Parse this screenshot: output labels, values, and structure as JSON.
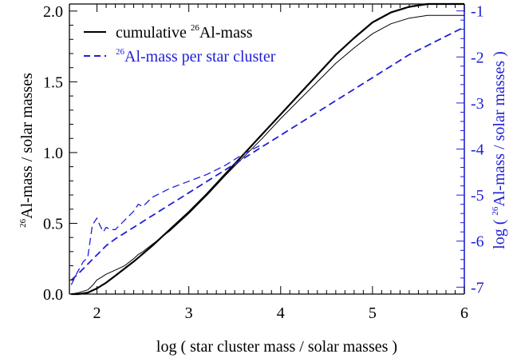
{
  "chart_data": {
    "type": "line",
    "xlabel": "log ( star cluster mass / solar masses )",
    "ylabel_left": {
      "sup": "26",
      "text": "Al-mass / solar masses"
    },
    "ylabel_right": {
      "prefix": "log ( ",
      "sup": "26",
      "text": "Al-mass / solar masses )"
    },
    "xlim": [
      1.7,
      6.0
    ],
    "ylim_left": [
      0.0,
      2.05
    ],
    "ylim_right": [
      -7.15,
      -0.85
    ],
    "x_ticks": [
      "2",
      "3",
      "4",
      "5",
      "6"
    ],
    "x_tick_values": [
      2,
      3,
      4,
      5,
      6
    ],
    "y_left_ticks": [
      "0.0",
      "0.5",
      "1.0",
      "1.5",
      "2.0"
    ],
    "y_left_tick_values": [
      0.0,
      0.5,
      1.0,
      1.5,
      2.0
    ],
    "y_right_ticks": [
      "-1",
      "-2",
      "-3",
      "-4",
      "-5",
      "-6",
      "-7"
    ],
    "y_right_tick_values": [
      -1,
      -2,
      -3,
      -4,
      -5,
      -6,
      -7
    ],
    "legend": {
      "placement": "top-left",
      "entries": [
        {
          "sup": "",
          "pre": "cumulative ",
          "sup2": "26",
          "post": "Al-mass",
          "color": "#000000",
          "style": "solid"
        },
        {
          "sup": "26",
          "pre": "",
          "sup2": "",
          "post": "Al-mass per star cluster",
          "color": "#1f1fd6",
          "style": "dashed"
        }
      ]
    },
    "series": [
      {
        "axis": "left",
        "color": "#000000",
        "style": "solid",
        "width": 2.2,
        "x": [
          1.72,
          1.8,
          1.9,
          2.0,
          2.1,
          2.2,
          2.4,
          2.6,
          2.8,
          3.0,
          3.2,
          3.4,
          3.6,
          3.8,
          4.0,
          4.2,
          4.4,
          4.6,
          4.8,
          5.0,
          5.2,
          5.4,
          5.6,
          5.8,
          6.0
        ],
        "y": [
          0.0,
          0.0,
          0.01,
          0.04,
          0.08,
          0.13,
          0.23,
          0.34,
          0.46,
          0.58,
          0.71,
          0.85,
          0.99,
          1.13,
          1.27,
          1.41,
          1.55,
          1.69,
          1.81,
          1.92,
          1.99,
          2.03,
          2.05,
          2.05,
          2.05
        ]
      },
      {
        "axis": "left",
        "color": "#000000",
        "style": "solid",
        "width": 1.0,
        "x": [
          1.72,
          1.8,
          1.9,
          1.95,
          2.0,
          2.05,
          2.1,
          2.2,
          2.3,
          2.4,
          2.45,
          2.5,
          2.6,
          2.8,
          3.0,
          3.2,
          3.4,
          3.6,
          3.8,
          4.0,
          4.2,
          4.4,
          4.6,
          4.8,
          5.0,
          5.2,
          5.4,
          5.6,
          5.8,
          6.0
        ],
        "y": [
          0.0,
          0.01,
          0.03,
          0.06,
          0.1,
          0.12,
          0.14,
          0.17,
          0.2,
          0.25,
          0.28,
          0.3,
          0.35,
          0.45,
          0.57,
          0.7,
          0.84,
          0.97,
          1.1,
          1.24,
          1.37,
          1.5,
          1.63,
          1.74,
          1.84,
          1.91,
          1.95,
          1.97,
          1.97,
          1.97
        ]
      },
      {
        "axis": "right",
        "color": "#1f1fd6",
        "style": "dashed",
        "width": 1.8,
        "x": [
          1.72,
          1.8,
          1.9,
          2.0,
          2.1,
          2.2,
          2.4,
          2.6,
          2.8,
          3.0,
          3.2,
          3.4,
          3.6,
          3.8,
          4.0,
          4.2,
          4.4,
          4.6,
          4.8,
          5.0,
          5.2,
          5.4,
          5.6,
          5.8,
          6.0
        ],
        "y": [
          -6.85,
          -6.7,
          -6.5,
          -6.3,
          -6.1,
          -5.95,
          -5.7,
          -5.45,
          -5.2,
          -4.95,
          -4.7,
          -4.45,
          -4.2,
          -3.95,
          -3.7,
          -3.45,
          -3.2,
          -2.95,
          -2.7,
          -2.45,
          -2.2,
          -1.95,
          -1.75,
          -1.55,
          -1.35
        ]
      },
      {
        "axis": "right",
        "color": "#1f1fd6",
        "style": "dashed",
        "width": 1.3,
        "x": [
          1.72,
          1.78,
          1.85,
          1.9,
          1.95,
          2.0,
          2.03,
          2.07,
          2.1,
          2.15,
          2.2,
          2.3,
          2.4,
          2.45,
          2.5,
          2.6,
          2.7,
          2.8,
          3.0,
          3.2,
          3.4,
          3.6,
          3.8
        ],
        "y": [
          -6.95,
          -6.7,
          -6.45,
          -6.35,
          -5.65,
          -5.5,
          -5.65,
          -5.8,
          -5.7,
          -5.75,
          -5.75,
          -5.55,
          -5.35,
          -5.2,
          -5.25,
          -5.05,
          -4.95,
          -4.85,
          -4.7,
          -4.55,
          -4.35,
          -4.1,
          -3.9
        ]
      }
    ]
  }
}
